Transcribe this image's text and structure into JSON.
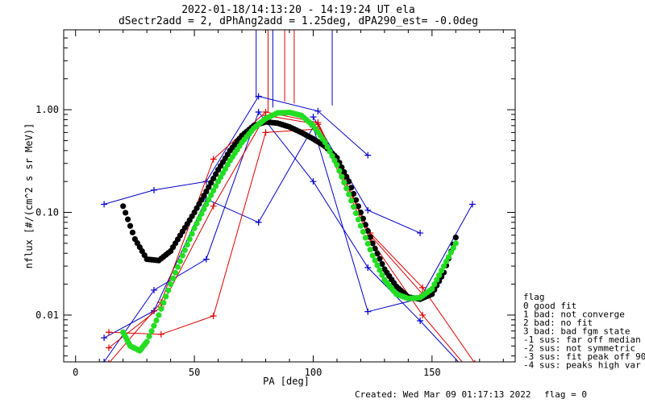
{
  "title_line1": "2022-01-18/14:13:20 - 14:19:24 UT ela",
  "title_line2": "dSectr2add = 2, dPhAng2add = 1.25deg, dPA290_est=  -0.0deg",
  "footer_created": "Created: Wed Mar 09 01:17:13 2022",
  "footer_flag": "flag = 0",
  "legend": {
    "title": "flag",
    "entries": [
      " 0 good fit",
      " 1 bad: not converge",
      " 2 bad: no fit",
      " 3 bad: bad fgm state",
      "-1 sus: far off median",
      "-2 sus: not symmetric",
      "-3 sus: fit peak off 90",
      "-4 sus: peaks high var"
    ]
  },
  "colors": {
    "blue": "#0000cc",
    "red": "#dd0000",
    "black": "#000000",
    "green": "#22dd22"
  },
  "chart_data": {
    "type": "line",
    "xlabel": "PA [deg]",
    "ylabel": "nflux [#/(cm^2 s sr MeV)]",
    "xlim": [
      -5,
      185
    ],
    "ylim": [
      0.0035,
      6.0
    ],
    "yscale": "log",
    "xticks": [
      0,
      50,
      100,
      150
    ],
    "xticklabels": [
      "0",
      "50",
      "100",
      "150"
    ],
    "yticks": [
      0.01,
      0.1,
      1.0
    ],
    "yticklabels": [
      "0.01",
      "0.10",
      "1.00"
    ],
    "series": [
      {
        "color": "blue",
        "style": "line+plus",
        "x": [
          12,
          33,
          55,
          77,
          102,
          123
        ],
        "y": [
          0.12,
          0.165,
          0.2,
          1.35,
          0.97,
          0.36
        ]
      },
      {
        "color": "blue",
        "style": "line+plus",
        "x": [
          12,
          33,
          55,
          77,
          100,
          123,
          145,
          167
        ],
        "y": [
          0.0035,
          0.0175,
          0.035,
          0.95,
          0.2,
          0.029,
          0.0088,
          0.0025
        ]
      },
      {
        "color": "blue",
        "style": "line+plus",
        "x": [
          12,
          33,
          55,
          77,
          100,
          123,
          145,
          167
        ],
        "y": [
          0.006,
          0.011,
          0.135,
          0.08,
          0.68,
          0.0108,
          0.0145,
          0.12
        ]
      },
      {
        "color": "blue",
        "style": "line+plus",
        "x": [
          100,
          123,
          145
        ],
        "y": [
          0.85,
          0.105,
          0.063
        ]
      },
      {
        "color": "red",
        "style": "line+plus",
        "x": [
          14,
          36,
          58,
          80,
          102,
          124,
          146,
          168
        ],
        "y": [
          0.0034,
          0.0133,
          0.33,
          0.95,
          0.75,
          0.063,
          0.0185,
          0.0034
        ]
      },
      {
        "color": "red",
        "style": "line+plus",
        "x": [
          14,
          36,
          58,
          80,
          102,
          124,
          146,
          168
        ],
        "y": [
          0.0068,
          0.0065,
          0.0098,
          0.6,
          0.65,
          0.055,
          0.01,
          0.0025
        ]
      },
      {
        "color": "red",
        "style": "line+plus",
        "x": [
          14,
          36,
          58,
          80,
          102,
          124,
          146
        ],
        "y": [
          0.0048,
          0.012,
          0.115,
          0.88,
          0.72,
          0.06,
          0.016
        ]
      },
      {
        "color": "black",
        "style": "dots",
        "x": [
          20,
          25,
          30,
          35,
          40,
          45,
          50,
          55,
          60,
          65,
          70,
          75,
          80,
          85,
          90,
          95,
          100,
          105,
          110,
          115,
          120,
          125,
          130,
          135,
          140,
          145,
          150,
          155,
          160
        ],
        "y": [
          0.115,
          0.055,
          0.035,
          0.034,
          0.042,
          0.065,
          0.1,
          0.16,
          0.26,
          0.4,
          0.56,
          0.7,
          0.76,
          0.74,
          0.68,
          0.6,
          0.52,
          0.44,
          0.34,
          0.2,
          0.1,
          0.05,
          0.028,
          0.019,
          0.015,
          0.0143,
          0.016,
          0.026,
          0.057
        ]
      },
      {
        "color": "green",
        "style": "dots",
        "x": [
          20,
          23,
          27,
          30,
          35,
          40,
          45,
          50,
          55,
          60,
          65,
          70,
          75,
          80,
          85,
          90,
          95,
          100,
          105,
          110,
          115,
          120,
          125,
          130,
          135,
          140,
          145,
          150,
          155,
          160
        ],
        "y": [
          0.0068,
          0.005,
          0.0045,
          0.0055,
          0.01,
          0.02,
          0.038,
          0.07,
          0.12,
          0.2,
          0.32,
          0.48,
          0.66,
          0.82,
          0.93,
          0.94,
          0.88,
          0.7,
          0.48,
          0.29,
          0.15,
          0.074,
          0.038,
          0.022,
          0.016,
          0.0145,
          0.0148,
          0.018,
          0.03,
          0.05
        ]
      }
    ],
    "vlines": [
      {
        "color": "blue",
        "x": 76,
        "y": 1.3
      },
      {
        "color": "blue",
        "x": 83,
        "y": 1.05
      },
      {
        "color": "blue",
        "x": 108,
        "y": 1.1
      },
      {
        "color": "red",
        "x": 81,
        "y": 0.95
      },
      {
        "color": "red",
        "x": 88,
        "y": 1.2
      },
      {
        "color": "red",
        "x": 92,
        "y": 1.15
      }
    ]
  }
}
